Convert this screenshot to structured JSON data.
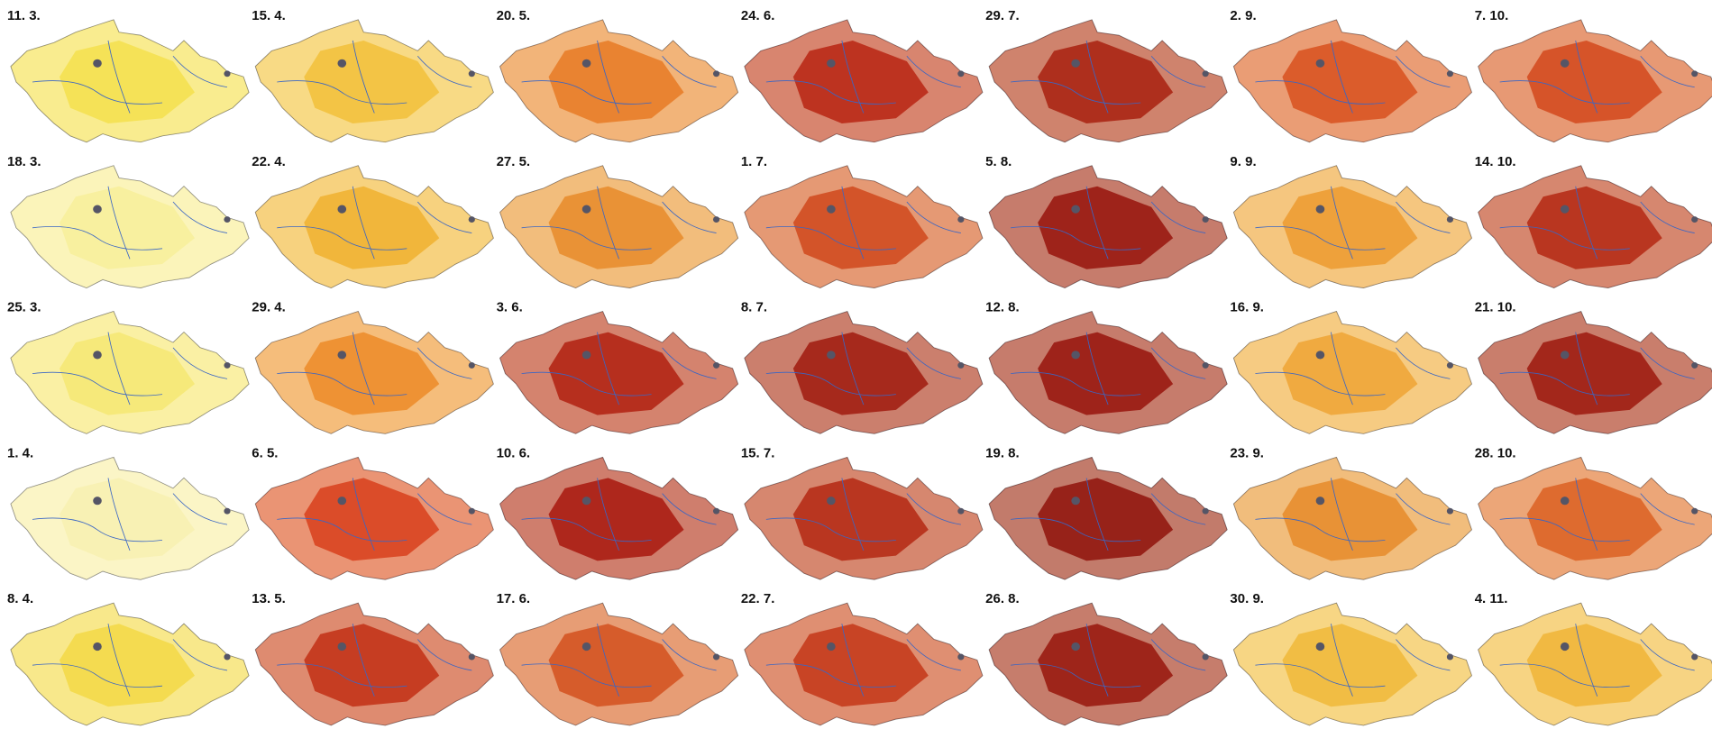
{
  "panels": [
    {
      "label": "11. 3.",
      "color": "#f4e04d"
    },
    {
      "label": "18. 3.",
      "color": "#f7ee9a"
    },
    {
      "label": "25. 3.",
      "color": "#f6e873"
    },
    {
      "label": "1. 4.",
      "color": "#f8f0b0"
    },
    {
      "label": "8. 4.",
      "color": "#f3d845"
    },
    {
      "label": "15. 4.",
      "color": "#f2c03a"
    },
    {
      "label": "22. 4.",
      "color": "#f0b030"
    },
    {
      "label": "29. 4.",
      "color": "#ec8a28"
    },
    {
      "label": "6. 5.",
      "color": "#d8401c"
    },
    {
      "label": "13. 5.",
      "color": "#c23014"
    },
    {
      "label": "20. 5.",
      "color": "#e87a24"
    },
    {
      "label": "27. 5.",
      "color": "#e88a2a"
    },
    {
      "label": "3. 6.",
      "color": "#b02010"
    },
    {
      "label": "10. 6.",
      "color": "#a8180e"
    },
    {
      "label": "17. 6.",
      "color": "#d4501e"
    },
    {
      "label": "24. 6.",
      "color": "#b82412"
    },
    {
      "label": "1. 7.",
      "color": "#d0481c"
    },
    {
      "label": "8. 7.",
      "color": "#a01a0e"
    },
    {
      "label": "15. 7.",
      "color": "#b42812"
    },
    {
      "label": "22. 7.",
      "color": "#c43618"
    },
    {
      "label": "29. 7.",
      "color": "#a8200f"
    },
    {
      "label": "5. 8.",
      "color": "#98140c"
    },
    {
      "label": "12. 8.",
      "color": "#98140c"
    },
    {
      "label": "19. 8.",
      "color": "#90120b"
    },
    {
      "label": "26. 8.",
      "color": "#98160c"
    },
    {
      "label": "2. 9.",
      "color": "#d8501e"
    },
    {
      "label": "9. 9.",
      "color": "#ec9a30"
    },
    {
      "label": "16. 9.",
      "color": "#eea434"
    },
    {
      "label": "23. 9.",
      "color": "#e68a2a"
    },
    {
      "label": "30. 9.",
      "color": "#f0b838"
    },
    {
      "label": "7. 10.",
      "color": "#d4481c"
    },
    {
      "label": "14. 10.",
      "color": "#b42812"
    },
    {
      "label": "21. 10.",
      "color": "#9c180d"
    },
    {
      "label": "28. 10.",
      "color": "#dc6022"
    },
    {
      "label": "4. 11.",
      "color": "#f0b436"
    }
  ]
}
